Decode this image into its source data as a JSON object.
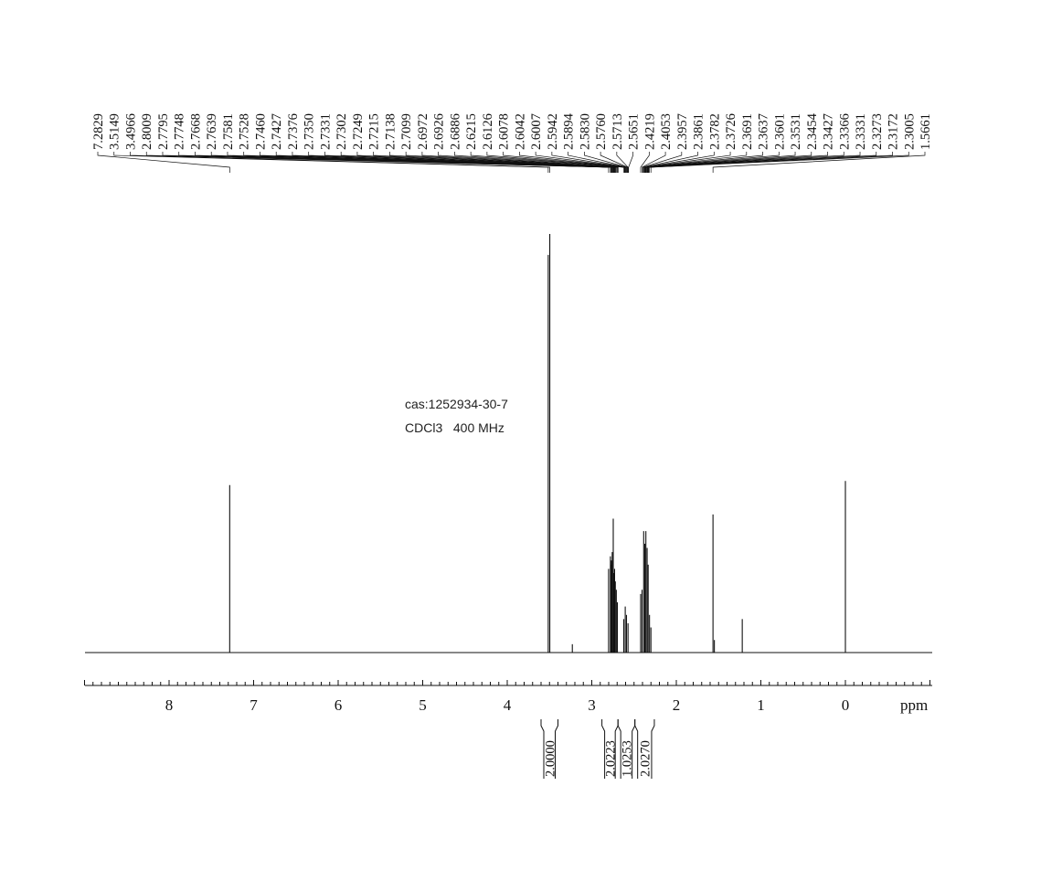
{
  "sample": {
    "cas": "cas:1252934-30-7",
    "conditions": "CDCl3   400 MHz"
  },
  "chart_data": {
    "type": "line",
    "title": "",
    "xlabel": "ppm",
    "ylabel": "",
    "xlim": [
      9.0,
      -1.0
    ],
    "reversed_x_axis": true,
    "grid": false,
    "legend": "none",
    "x_tick_labels": [
      "8",
      "7",
      "6",
      "5",
      "4",
      "3",
      "2",
      "1",
      "0"
    ],
    "peak_labels": [
      "7.2829",
      "3.5149",
      "3.4966",
      "2.8009",
      "2.7795",
      "2.7748",
      "2.7668",
      "2.7639",
      "2.7581",
      "2.7528",
      "2.7460",
      "2.7427",
      "2.7376",
      "2.7350",
      "2.7331",
      "2.7302",
      "2.7249",
      "2.7215",
      "2.7138",
      "2.7099",
      "2.6972",
      "2.6926",
      "2.6886",
      "2.6215",
      "2.6126",
      "2.6078",
      "2.6042",
      "2.6007",
      "2.5942",
      "2.5894",
      "2.5830",
      "2.5760",
      "2.5713",
      "2.5651",
      "2.4219",
      "2.4053",
      "2.3957",
      "2.3861",
      "2.3782",
      "2.3726",
      "2.3691",
      "2.3637",
      "2.3601",
      "2.3531",
      "2.3454",
      "2.3427",
      "2.3366",
      "2.3331",
      "2.3273",
      "2.3172",
      "2.3005",
      "1.5661"
    ],
    "peaks": [
      {
        "ppm": 7.2829,
        "intensity": 0.4
      },
      {
        "ppm": 3.5149,
        "intensity": 0.95
      },
      {
        "ppm": 3.4966,
        "intensity": 1.0
      },
      {
        "ppm": 3.23,
        "intensity": 0.02
      },
      {
        "ppm": 2.8009,
        "intensity": 0.2
      },
      {
        "ppm": 2.7795,
        "intensity": 0.23
      },
      {
        "ppm": 2.7748,
        "intensity": 0.21
      },
      {
        "ppm": 2.7668,
        "intensity": 0.22
      },
      {
        "ppm": 2.7581,
        "intensity": 0.24
      },
      {
        "ppm": 2.746,
        "intensity": 0.32
      },
      {
        "ppm": 2.7376,
        "intensity": 0.19
      },
      {
        "ppm": 2.7302,
        "intensity": 0.2
      },
      {
        "ppm": 2.7215,
        "intensity": 0.17
      },
      {
        "ppm": 2.7099,
        "intensity": 0.15
      },
      {
        "ppm": 2.6972,
        "intensity": 0.12
      },
      {
        "ppm": 2.6215,
        "intensity": 0.08
      },
      {
        "ppm": 2.6042,
        "intensity": 0.11
      },
      {
        "ppm": 2.5894,
        "intensity": 0.09
      },
      {
        "ppm": 2.5713,
        "intensity": 0.07
      },
      {
        "ppm": 2.4219,
        "intensity": 0.14
      },
      {
        "ppm": 2.4053,
        "intensity": 0.15
      },
      {
        "ppm": 2.3861,
        "intensity": 0.29
      },
      {
        "ppm": 2.3726,
        "intensity": 0.26
      },
      {
        "ppm": 2.3601,
        "intensity": 0.29
      },
      {
        "ppm": 2.3454,
        "intensity": 0.25
      },
      {
        "ppm": 2.3331,
        "intensity": 0.21
      },
      {
        "ppm": 2.3172,
        "intensity": 0.09
      },
      {
        "ppm": 2.3005,
        "intensity": 0.06
      },
      {
        "ppm": 1.5661,
        "intensity": 0.33
      },
      {
        "ppm": 1.55,
        "intensity": 0.03
      },
      {
        "ppm": 1.22,
        "intensity": 0.08
      },
      {
        "ppm": 0.0,
        "intensity": 0.41
      }
    ],
    "integrals": [
      {
        "ppm_from": 3.6,
        "ppm_to": 3.4,
        "value": "2.0000"
      },
      {
        "ppm_from": 2.88,
        "ppm_to": 2.69,
        "value": "2.0223"
      },
      {
        "ppm_from": 2.69,
        "ppm_to": 2.49,
        "value": "1.0253"
      },
      {
        "ppm_from": 2.49,
        "ppm_to": 2.26,
        "value": "2.0270"
      }
    ]
  }
}
